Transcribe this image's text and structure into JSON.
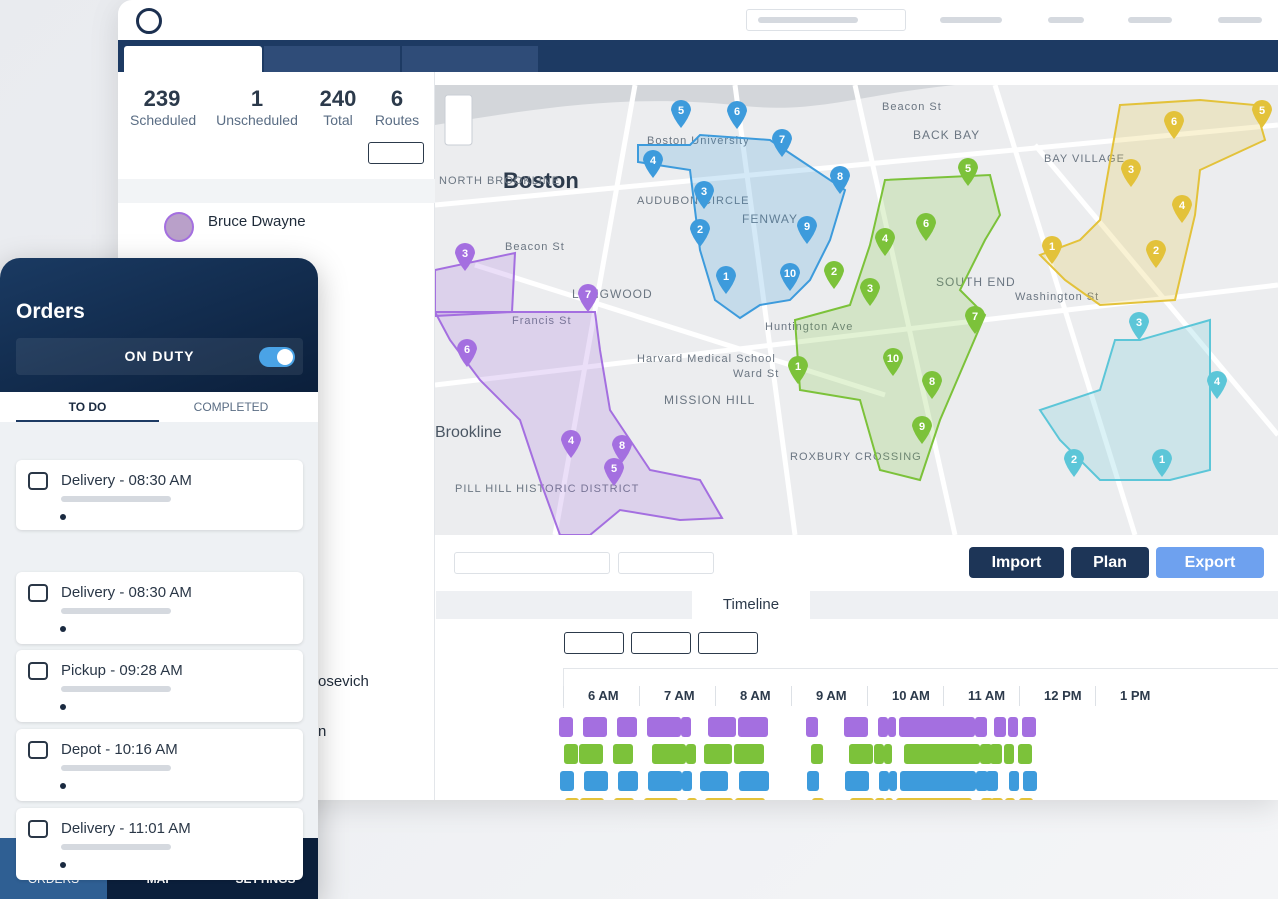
{
  "summary": {
    "stats": [
      {
        "value": "239",
        "label": "Scheduled"
      },
      {
        "value": "1",
        "label": "Unscheduled"
      },
      {
        "value": "240",
        "label": "Total"
      },
      {
        "value": "6",
        "label": "Routes"
      }
    ]
  },
  "list": {
    "names": [
      "Bruce Dwayne",
      "osevich",
      "n"
    ]
  },
  "map": {
    "labels": [
      "Boston",
      "Boston University",
      "FENWAY",
      "BACK BAY",
      "BAY VILLAGE",
      "SOUTH END",
      "NORTH BROOKLINE",
      "AUDUBON CIRCLE",
      "LONGWOOD",
      "Harvard Medical School",
      "MISSION HILL",
      "Brookline",
      "PILL HILL HISTORIC DISTRICT",
      "ROXBURY CROSSING",
      "Beacon St",
      "Beacon St",
      "Francis St",
      "Ward St",
      "Washington St",
      "Huntington Ave"
    ],
    "routes": [
      {
        "color": "#a46fe0",
        "pins": [
          "3",
          "7",
          "6",
          "4",
          "8",
          "5"
        ]
      },
      {
        "color": "#3d9bdc",
        "pins": [
          "5",
          "6",
          "4",
          "7",
          "3",
          "8",
          "2",
          "9",
          "1",
          "10"
        ]
      },
      {
        "color": "#7cc23a",
        "pins": [
          "5",
          "6",
          "4",
          "2",
          "3",
          "7",
          "1",
          "10",
          "8",
          "9"
        ]
      },
      {
        "color": "#e3c23a",
        "pins": [
          "5",
          "6",
          "3",
          "4",
          "1",
          "2"
        ]
      },
      {
        "color": "#5cc6d8",
        "pins": [
          "3",
          "4",
          "2",
          "1"
        ]
      }
    ]
  },
  "toolbar": {
    "buttons": [
      "Import",
      "Plan",
      "Export"
    ],
    "tab": "Timeline"
  },
  "timeline": {
    "hours": [
      "6 AM",
      "7 AM",
      "8 AM",
      "9 AM",
      "10 AM",
      "11 AM",
      "12 PM",
      "1 PM"
    ]
  },
  "mobile": {
    "title": "Orders",
    "status": "ON DUTY",
    "tabs": [
      "TO DO",
      "COMPLETED"
    ],
    "orders": [
      "Delivery - 08:30 AM",
      "Delivery - 08:30 AM",
      "Pickup - 09:28 AM",
      "Depot - 10:16 AM",
      "Delivery - 11:01 AM"
    ],
    "nav": [
      "ORDERS",
      "MAP",
      "SETTINGS"
    ]
  }
}
